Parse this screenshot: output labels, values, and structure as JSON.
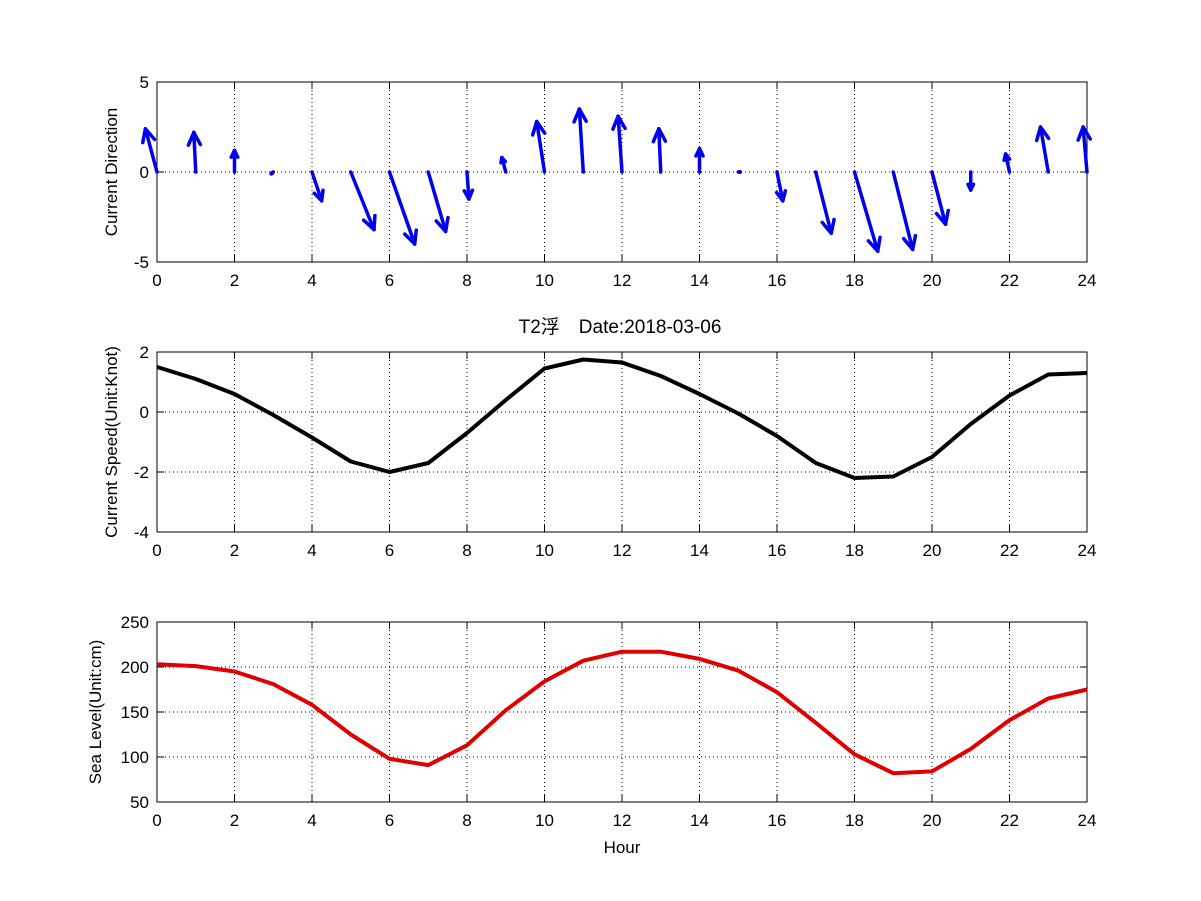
{
  "figure": {
    "title": "T2浮　Date:2018-03-06",
    "title_color": "#e00000",
    "background": "#ffffff"
  },
  "chart_data": [
    {
      "type": "quiver",
      "ylabel": "Current Direction",
      "xlabel": "",
      "xlim": [
        0,
        24
      ],
      "ylim": [
        -5,
        5
      ],
      "xticks": [
        0,
        2,
        4,
        6,
        8,
        10,
        12,
        14,
        16,
        18,
        20,
        22,
        24
      ],
      "yticks": [
        -5,
        0,
        5
      ],
      "grid": true,
      "color": "#0000ee",
      "x": [
        0,
        1,
        2,
        3,
        4,
        5,
        6,
        7,
        8,
        9,
        10,
        11,
        12,
        13,
        14,
        15,
        16,
        17,
        18,
        19,
        20,
        21,
        22,
        23,
        24
      ],
      "u": [
        -0.3,
        -0.05,
        0.0,
        -0.05,
        0.25,
        0.6,
        0.65,
        0.45,
        0.05,
        -0.1,
        -0.2,
        -0.1,
        -0.1,
        -0.05,
        0.0,
        0.05,
        0.15,
        0.4,
        0.6,
        0.5,
        0.35,
        0.0,
        -0.1,
        -0.2,
        -0.1
      ],
      "v": [
        2.4,
        2.2,
        1.2,
        -0.1,
        -1.6,
        -3.2,
        -4.0,
        -3.3,
        -1.5,
        0.8,
        2.8,
        3.5,
        3.1,
        2.4,
        1.3,
        0.0,
        -1.6,
        -3.4,
        -4.4,
        -4.3,
        -2.9,
        -1.0,
        1.0,
        2.5,
        2.5
      ]
    },
    {
      "type": "line",
      "ylabel": "Current Speed(Unit:Knot)",
      "xlabel": "",
      "xlim": [
        0,
        24
      ],
      "ylim": [
        -4,
        2
      ],
      "xticks": [
        0,
        2,
        4,
        6,
        8,
        10,
        12,
        14,
        16,
        18,
        20,
        22,
        24
      ],
      "yticks": [
        -4,
        -2,
        0,
        2
      ],
      "grid": true,
      "color": "#000000",
      "x": [
        0,
        1,
        2,
        3,
        4,
        5,
        6,
        7,
        8,
        9,
        10,
        11,
        12,
        13,
        14,
        15,
        16,
        17,
        18,
        19,
        20,
        21,
        22,
        23,
        24
      ],
      "y": [
        1.5,
        1.1,
        0.6,
        -0.1,
        -0.85,
        -1.65,
        -2.0,
        -1.7,
        -0.7,
        0.4,
        1.45,
        1.75,
        1.65,
        1.2,
        0.6,
        -0.05,
        -0.8,
        -1.7,
        -2.2,
        -2.15,
        -1.5,
        -0.4,
        0.55,
        1.25,
        1.3
      ]
    },
    {
      "type": "line",
      "ylabel": "Sea Level(Unit:cm)",
      "xlabel": "Hour",
      "xlim": [
        0,
        24
      ],
      "ylim": [
        50,
        250
      ],
      "xticks": [
        0,
        2,
        4,
        6,
        8,
        10,
        12,
        14,
        16,
        18,
        20,
        22,
        24
      ],
      "yticks": [
        50,
        100,
        150,
        200,
        250
      ],
      "grid": true,
      "color": "#e00000",
      "x": [
        0,
        1,
        2,
        3,
        4,
        5,
        6,
        7,
        8,
        9,
        10,
        11,
        12,
        13,
        14,
        15,
        16,
        17,
        18,
        19,
        20,
        21,
        22,
        23,
        24
      ],
      "y": [
        203,
        201,
        195,
        181,
        158,
        125,
        98,
        91,
        113,
        152,
        184,
        207,
        217,
        217,
        209,
        196,
        172,
        138,
        103,
        82,
        84,
        109,
        141,
        165,
        175
      ]
    }
  ]
}
